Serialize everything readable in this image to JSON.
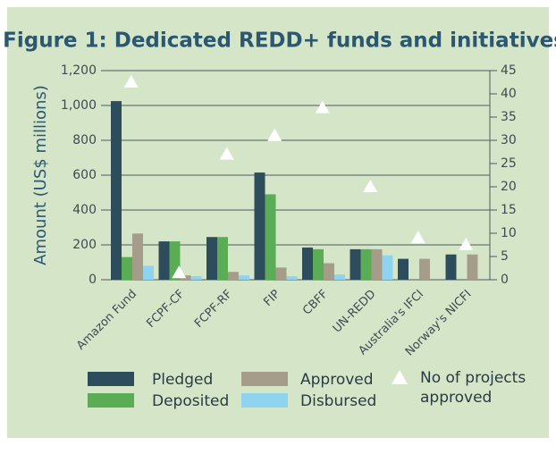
{
  "chart_data": {
    "type": "bar",
    "title": "Figure 1: Dedicated REDD+ funds and initiatives",
    "y_label": "Amount (US$ millions)",
    "categories": [
      "Amazon Fund",
      "FCPF-CF",
      "FCPF-RF",
      "FIP",
      "CBFF",
      "UN-REDD",
      "Australia's IFCI",
      "Norway's NICFI"
    ],
    "series": [
      {
        "name": "Pledged",
        "color": "#2d4d5c",
        "values": [
          1025,
          220,
          245,
          615,
          185,
          175,
          120,
          145
        ]
      },
      {
        "name": "Deposited",
        "color": "#5aad55",
        "values": [
          130,
          220,
          245,
          490,
          175,
          175,
          null,
          null
        ]
      },
      {
        "name": "Approved",
        "color": "#a59d89",
        "values": [
          265,
          25,
          45,
          70,
          95,
          175,
          120,
          145
        ]
      },
      {
        "name": "Disbursed",
        "color": "#8fd3ee",
        "values": [
          80,
          20,
          25,
          20,
          30,
          140,
          null,
          null
        ]
      },
      {
        "name": "No of projects approved",
        "color": "#ffffff",
        "type": "scatter",
        "marker": "triangle",
        "axis": "y2",
        "values": [
          42.5,
          1.5,
          27,
          31,
          37,
          20,
          9,
          7.5
        ]
      }
    ],
    "ylim": [
      0,
      1200
    ],
    "yticks": [
      0,
      200,
      400,
      600,
      800,
      {
        "value": 1000,
        "label": "1,000"
      },
      {
        "value": 1200,
        "label": "1,200"
      }
    ],
    "y2lim": [
      0,
      45
    ],
    "y2ticks": [
      0,
      5,
      10,
      15,
      20,
      25,
      30,
      35,
      40,
      45
    ],
    "grid": true
  }
}
